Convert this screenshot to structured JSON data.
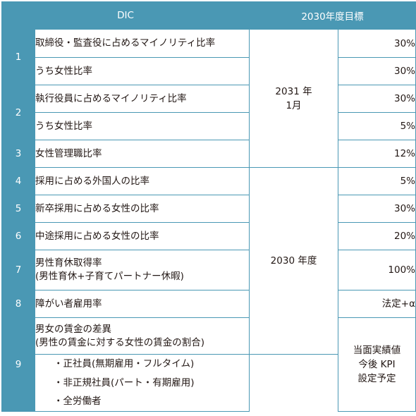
{
  "header": {
    "col1": "DIC",
    "col2": "2030年度目標"
  },
  "rows": [
    {
      "num": "1",
      "label": "取締役・監査役に占めるマイノリティ比率",
      "target": "30%"
    },
    {
      "label": "うち女性比率",
      "target": "30%"
    },
    {
      "num": "2",
      "label": "執行役員に占めるマイノリティ比率",
      "target": "30%"
    },
    {
      "label": "うち女性比率",
      "target": "5%"
    },
    {
      "num": "3",
      "label": "女性管理職比率",
      "target": "12%"
    },
    {
      "num": "4",
      "label": "採用に占める外国人の比率",
      "target": "5%"
    },
    {
      "num": "5",
      "label": "新卒採用に占める女性の比率",
      "target": "30%"
    },
    {
      "num": "6",
      "label": "中途採用に占める女性の比率",
      "target": "20%"
    },
    {
      "num": "7",
      "label_line1": "男性育休取得率",
      "label_line2": "(男性育休+子育てパートナー休暇)",
      "target": "100%"
    },
    {
      "num": "8",
      "label": "障がい者雇用率",
      "target": "法定+α"
    },
    {
      "num": "9",
      "label_line1": "男女の賃金の差異",
      "label_line2": "(男性の賃金に対する女性の賃金の割合)",
      "sub": [
        "・正社員(無期雇用・フルタイム)",
        "・非正規社員(パート・有期雇用)",
        "・全労働者"
      ],
      "target_lines": [
        "当面実績値",
        "今後 KPI",
        "設定予定"
      ]
    }
  ],
  "deadlines": {
    "first": {
      "line1": "2031 年",
      "line2": "1月"
    },
    "second": "2030 年度"
  }
}
